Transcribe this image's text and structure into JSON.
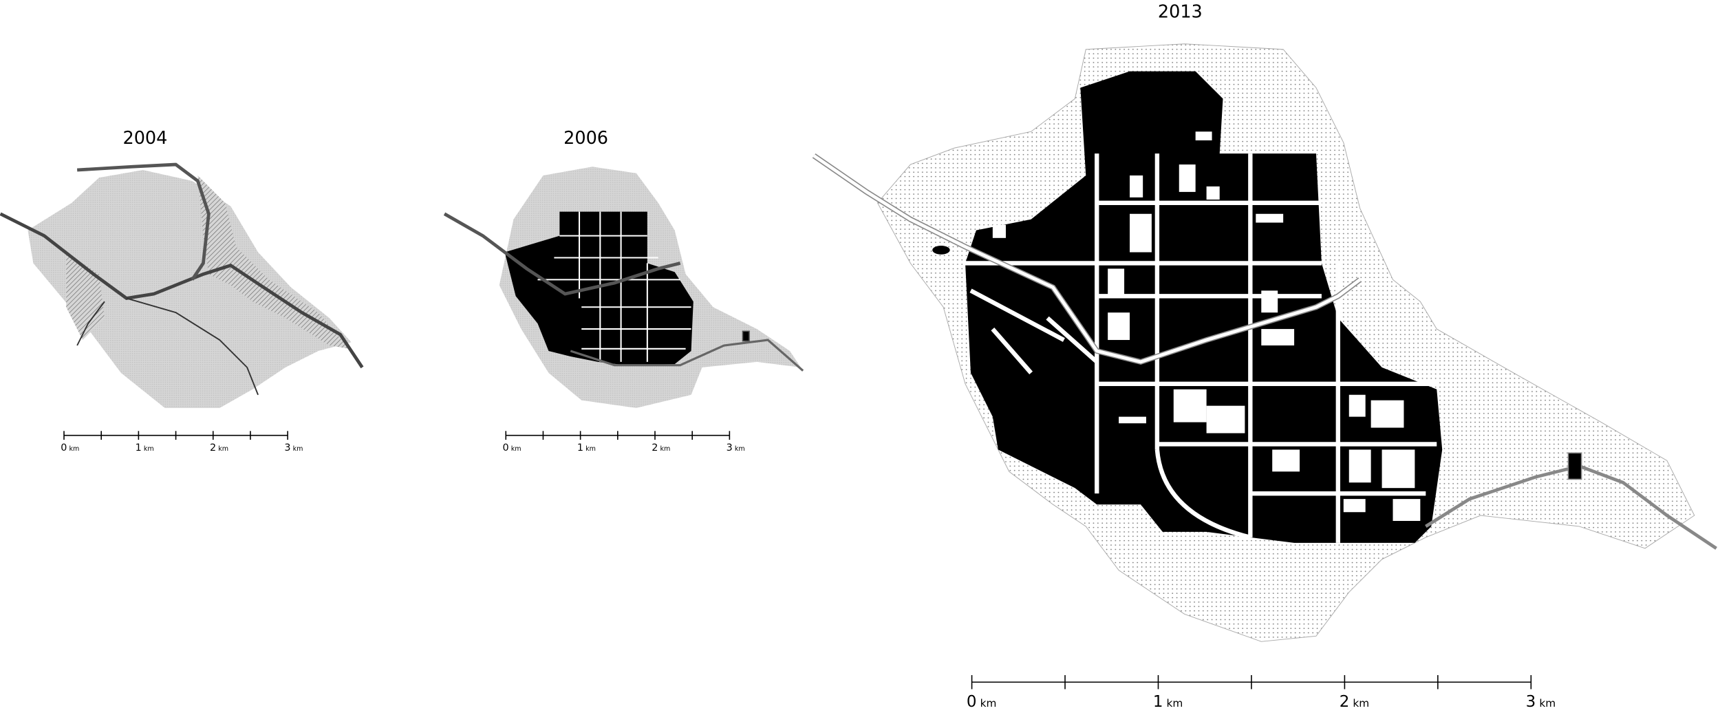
{
  "maps": [
    {
      "title": "2004",
      "scale_labels": [
        "0",
        "1",
        "2",
        "3"
      ],
      "unit": "km"
    },
    {
      "title": "2006",
      "scale_labels": [
        "0",
        "1",
        "2",
        "3"
      ],
      "unit": "km"
    },
    {
      "title": "2013",
      "scale_labels": [
        "0",
        "1",
        "2",
        "3"
      ],
      "unit": "km"
    }
  ]
}
